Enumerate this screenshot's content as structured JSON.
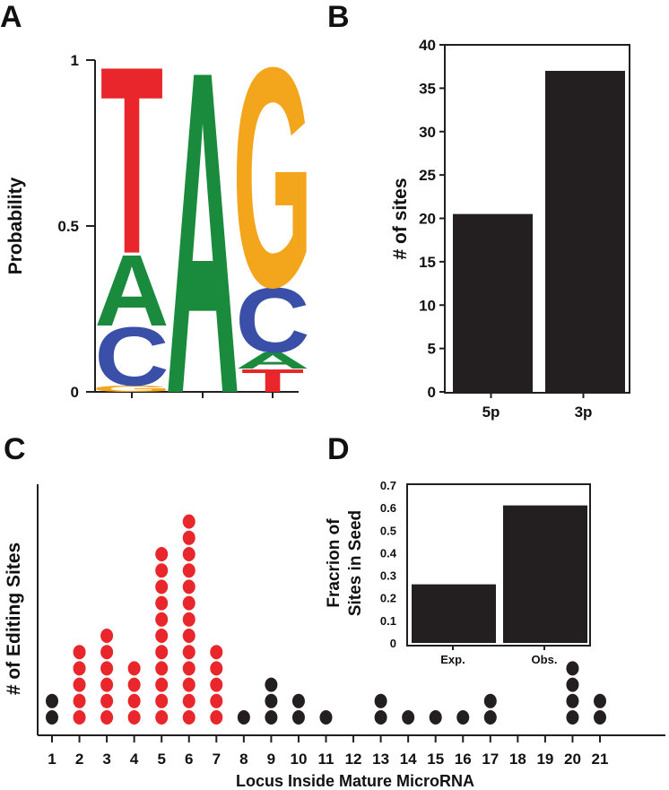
{
  "panels": {
    "a": "A",
    "b": "B",
    "c": "C",
    "d": "D"
  },
  "colors": {
    "A": "#1a8a3c",
    "C": "#3a4fa8",
    "G": "#f3a51b",
    "T": "#e8262b",
    "bar": "#231f20",
    "dot_red": "#e8262b",
    "dot_black": "#231f20"
  },
  "chart_data": [
    {
      "panel": "A",
      "type": "sequence-logo",
      "ylabel": "Probability",
      "yticks": [
        "0",
        "0.5",
        "1"
      ],
      "ylim": [
        0,
        1
      ],
      "positions": [
        {
          "letters": [
            {
              "base": "G",
              "p": 0.02
            },
            {
              "base": "C",
              "p": 0.18
            },
            {
              "base": "A",
              "p": 0.22
            },
            {
              "base": "T",
              "p": 0.58
            }
          ]
        },
        {
          "letters": [
            {
              "base": "A",
              "p": 1.0
            }
          ]
        },
        {
          "letters": [
            {
              "base": "T",
              "p": 0.07
            },
            {
              "base": "A",
              "p": 0.05
            },
            {
              "base": "C",
              "p": 0.2
            },
            {
              "base": "G",
              "p": 0.68
            }
          ]
        }
      ]
    },
    {
      "panel": "B",
      "type": "bar",
      "categories": [
        "5p",
        "3p"
      ],
      "values": [
        20.5,
        37
      ],
      "ylabel": "# of sites",
      "ylim": [
        0,
        40
      ],
      "yticks": [
        "0",
        "5",
        "10",
        "15",
        "20",
        "25",
        "30",
        "35",
        "40"
      ]
    },
    {
      "panel": "C",
      "type": "dot-plot",
      "xlabel": "Locus Inside Mature MicroRNA",
      "ylabel": "# of Editing Sites",
      "categories": [
        "1",
        "2",
        "3",
        "4",
        "5",
        "6",
        "7",
        "8",
        "9",
        "10",
        "11",
        "12",
        "13",
        "14",
        "15",
        "16",
        "17",
        "18",
        "19",
        "20",
        "21"
      ],
      "values": [
        2,
        5,
        6,
        4,
        11,
        13,
        5,
        1,
        3,
        2,
        1,
        0,
        2,
        1,
        1,
        1,
        2,
        0,
        0,
        4,
        2
      ],
      "seed_region": [
        "2",
        "3",
        "4",
        "5",
        "6",
        "7"
      ]
    },
    {
      "panel": "D",
      "type": "bar",
      "categories": [
        "Exp.",
        "Obs."
      ],
      "values": [
        0.26,
        0.61
      ],
      "ylabel": "Fracrion of Sites in Seed",
      "ylabel_lines": [
        "Fracrion of",
        "Sites in Seed"
      ],
      "ylim": [
        0,
        0.7
      ],
      "yticks": [
        "0",
        "0.1",
        "0.2",
        "0.3",
        "0.4",
        "0.5",
        "0.6",
        "0.7"
      ]
    }
  ]
}
